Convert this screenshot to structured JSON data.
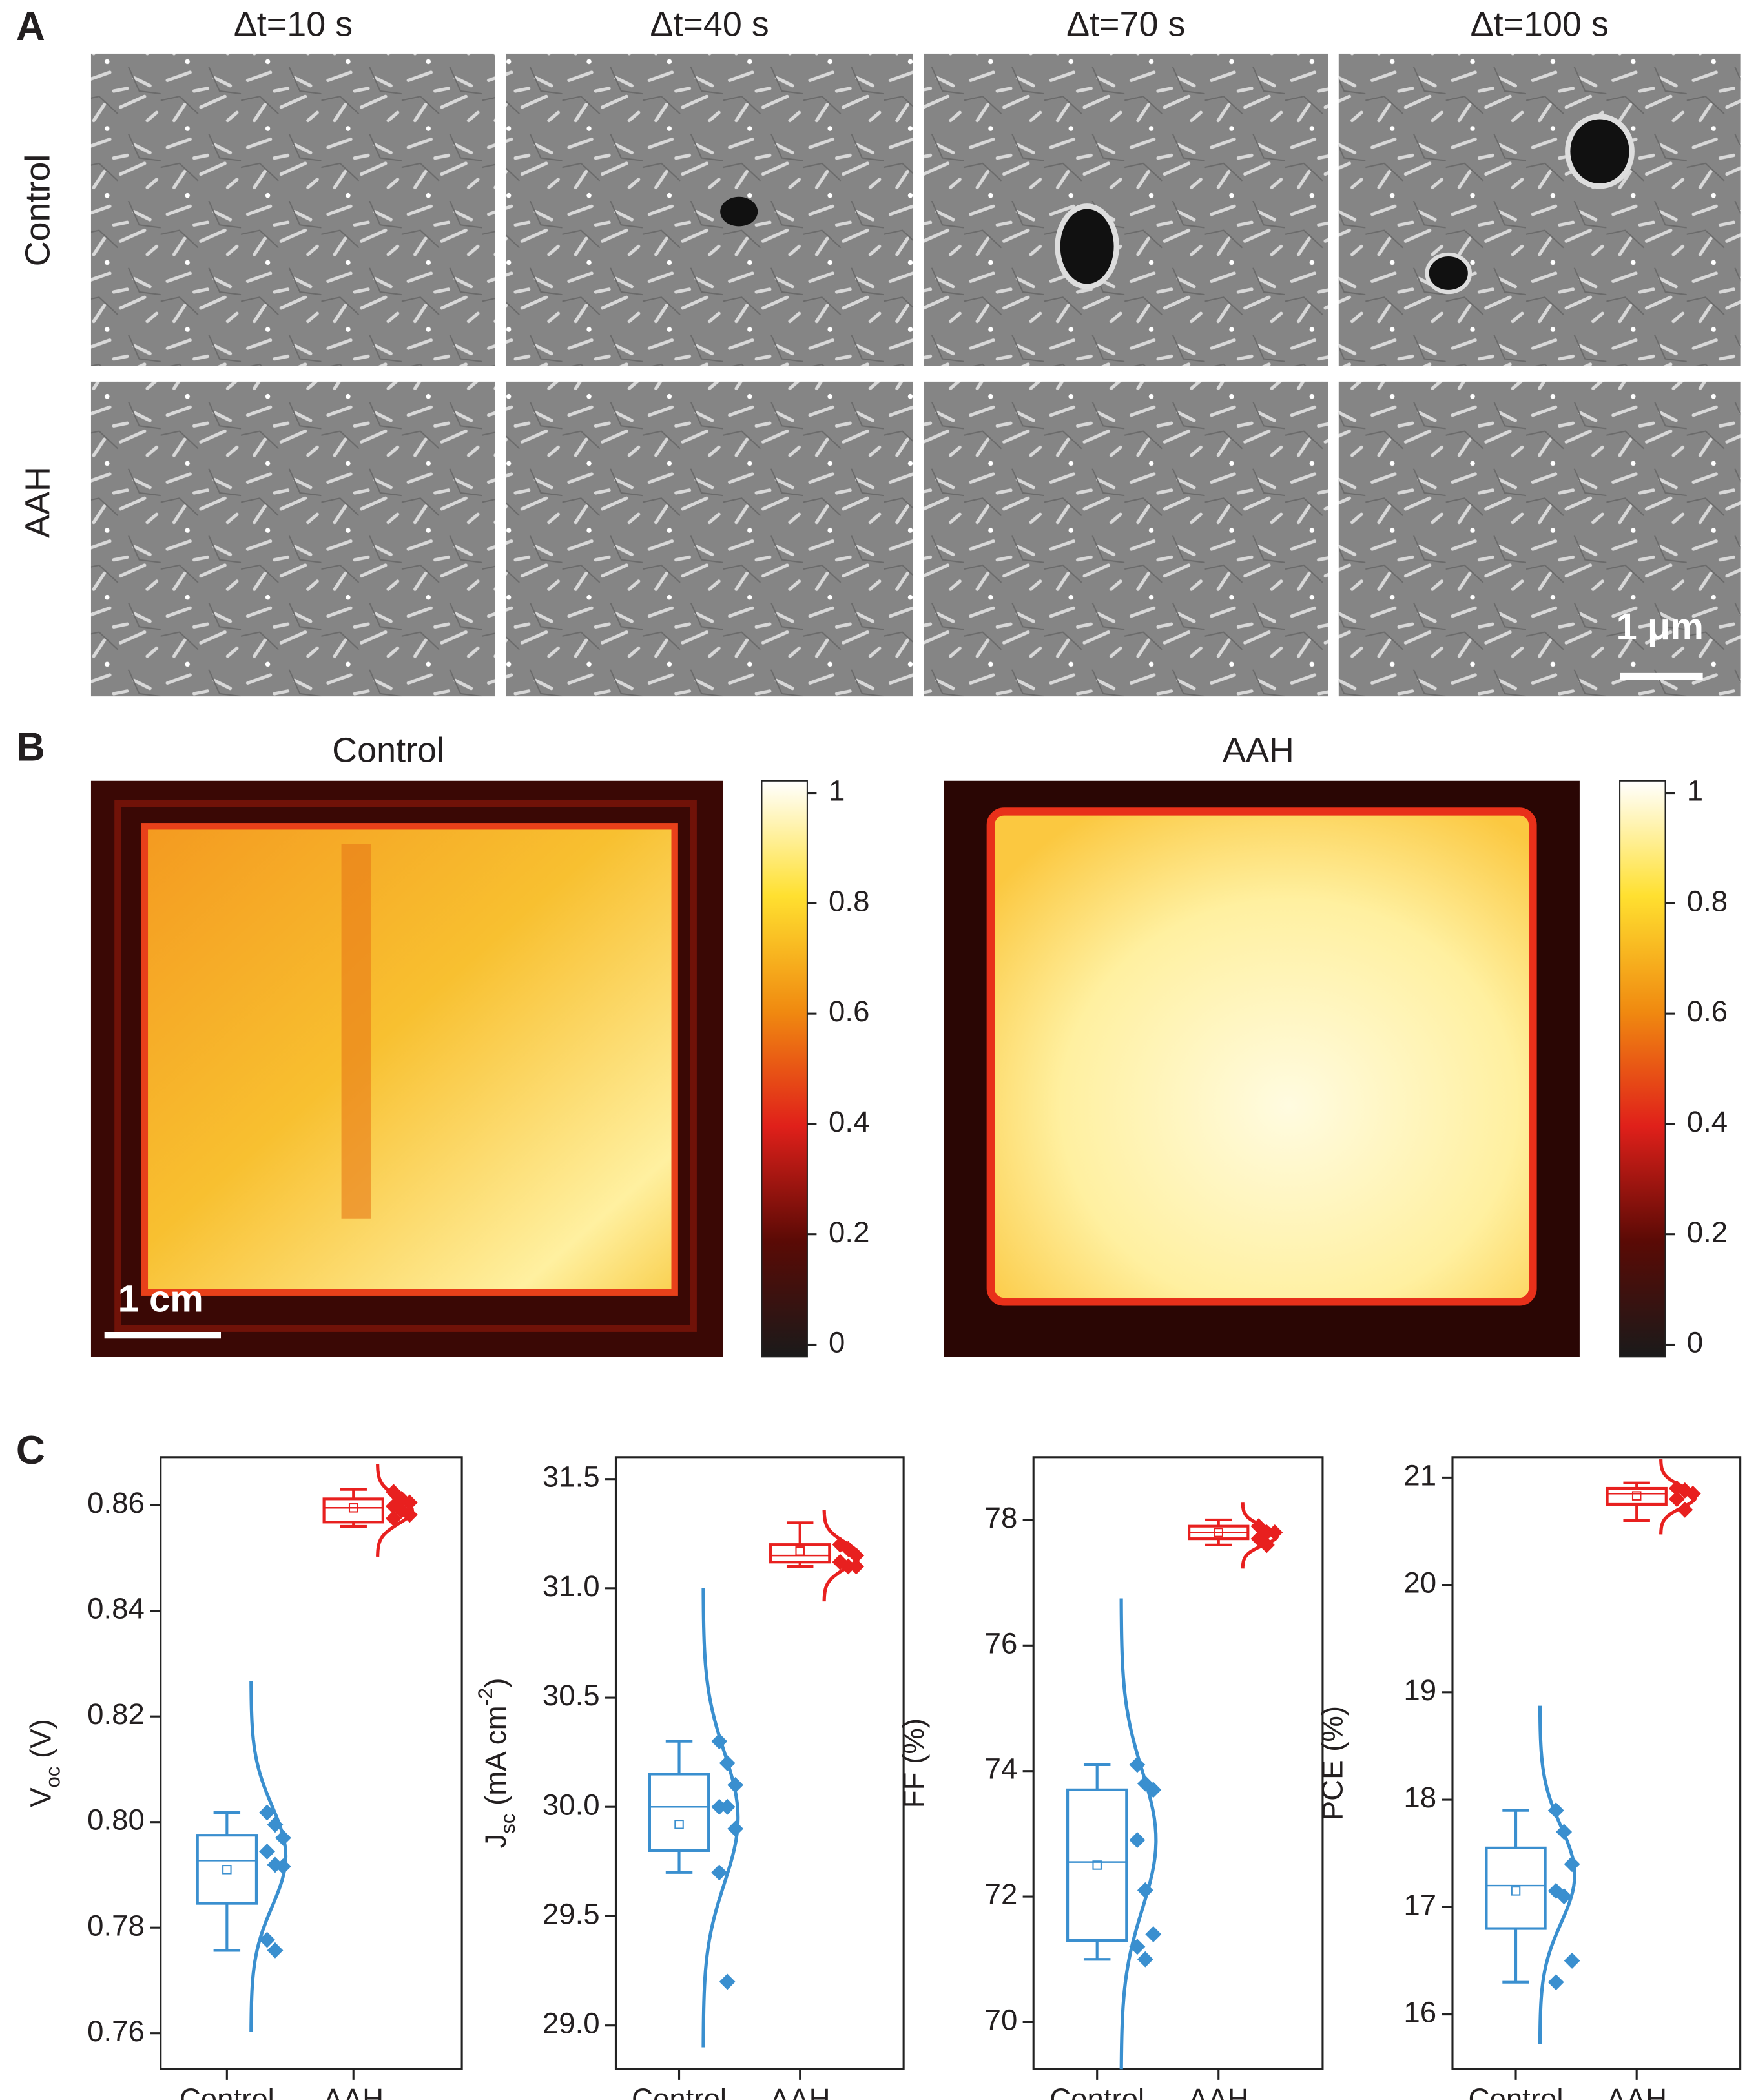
{
  "panel_labels": [
    "A",
    "B",
    "C"
  ],
  "panel_a": {
    "time_labels": [
      "Δt=10 s",
      "Δt=40 s",
      "Δt=70 s",
      "Δt=100 s"
    ],
    "row_labels": [
      "Control",
      "AAH"
    ],
    "scale_bar": "1 μm"
  },
  "panel_b": {
    "titles": [
      "Control",
      "AAH"
    ],
    "scale_bar": "1 cm",
    "colorbar": {
      "lim": [
        -0.022,
        1.022
      ],
      "ticks": [
        0,
        0.2,
        0.4,
        0.6,
        0.8,
        1
      ],
      "colormap": [
        "#1a1a1a",
        "#5a0a05",
        "#e0201a",
        "#f08a10",
        "#ffe030",
        "#ffffff"
      ]
    }
  },
  "chart_data": [
    {
      "type": "box",
      "ylabel": [
        {
          "text": "V"
        },
        {
          "text": "oc",
          "style": "sub"
        },
        {
          "text": " (V)"
        }
      ],
      "ylim": [
        0.7532,
        0.8691
      ],
      "yticks": [
        0.76,
        0.78,
        {
          "value": 0.8,
          "label": "0.80"
        },
        0.82,
        0.84,
        0.86
      ],
      "groups": [
        {
          "name": "Control",
          "color": "#3a8fcf",
          "whisker_low": 0.7757,
          "q1": 0.7846,
          "median": 0.7927,
          "q3": 0.7975,
          "whisker_high": 0.8018,
          "mean": 0.791,
          "points": [
            0.8018,
            0.7995,
            0.797,
            0.7944,
            0.7919,
            0.7916,
            0.7777,
            0.7757
          ],
          "dist": {
            "mean": 0.7935,
            "sd": 0.0095
          }
        },
        {
          "name": "AAH",
          "color": "#e8201f",
          "whisker_low": 0.856,
          "q1": 0.8568,
          "median": 0.8595,
          "q3": 0.8612,
          "whisker_high": 0.863,
          "mean": 0.8595,
          "points": [
            0.8625,
            0.8612,
            0.8605,
            0.8598,
            0.859,
            0.8582,
            0.8575
          ],
          "dist": {
            "mean": 0.859,
            "sd": 0.0025
          }
        }
      ]
    },
    {
      "type": "box",
      "ylabel": [
        {
          "text": "J"
        },
        {
          "text": "sc",
          "style": "sub"
        },
        {
          "text": " (mA cm"
        },
        {
          "text": "-2",
          "style": "sup"
        },
        {
          "text": ")"
        }
      ],
      "ylim": [
        28.8,
        31.6
      ],
      "yticks": [
        {
          "value": 29,
          "label": "29.0"
        },
        29.5,
        {
          "value": 30,
          "label": "30.0"
        },
        30.5,
        {
          "value": 31,
          "label": "31.0"
        },
        31.5
      ],
      "groups": [
        {
          "name": "Control",
          "color": "#3a8fcf",
          "whisker_low": 29.7,
          "q1": 29.8,
          "median": 30.0,
          "q3": 30.15,
          "whisker_high": 30.3,
          "mean": 29.92,
          "points": [
            30.3,
            30.2,
            30.1,
            30.0,
            30.0,
            29.9,
            29.7,
            29.2
          ],
          "dist": {
            "mean": 29.95,
            "sd": 0.3
          }
        },
        {
          "name": "AAH",
          "color": "#e8201f",
          "whisker_low": 31.1,
          "q1": 31.12,
          "median": 31.15,
          "q3": 31.2,
          "whisker_high": 31.3,
          "mean": 31.17,
          "points": [
            31.2,
            31.18,
            31.15,
            31.12,
            31.1,
            31.1
          ],
          "dist": {
            "mean": 31.15,
            "sd": 0.06
          }
        }
      ]
    },
    {
      "type": "box",
      "ylabel": [
        {
          "text": "FF (%)"
        }
      ],
      "ylim": [
        69.25,
        79.0
      ],
      "yticks": [
        70,
        72,
        74,
        76,
        78
      ],
      "groups": [
        {
          "name": "Control",
          "color": "#3a8fcf",
          "whisker_low": 71.0,
          "q1": 71.3,
          "median": 72.55,
          "q3": 73.7,
          "whisker_high": 74.1,
          "mean": 72.5,
          "points": [
            74.1,
            73.8,
            73.7,
            72.9,
            72.1,
            71.4,
            71.2,
            71.0
          ],
          "dist": {
            "mean": 72.9,
            "sd": 1.1
          }
        },
        {
          "name": "AAH",
          "color": "#e8201f",
          "whisker_low": 77.6,
          "q1": 77.7,
          "median": 77.8,
          "q3": 77.9,
          "whisker_high": 78.0,
          "mean": 77.8,
          "points": [
            77.9,
            77.8,
            77.8,
            77.7,
            77.6
          ],
          "dist": {
            "mean": 77.75,
            "sd": 0.15
          }
        }
      ]
    },
    {
      "type": "box",
      "ylabel": [
        {
          "text": "PCE (%)"
        }
      ],
      "ylim": [
        15.49,
        21.19
      ],
      "yticks": [
        16,
        17,
        18,
        19,
        20,
        21
      ],
      "groups": [
        {
          "name": "Control",
          "color": "#3a8fcf",
          "whisker_low": 16.3,
          "q1": 16.8,
          "median": 17.2,
          "q3": 17.55,
          "whisker_high": 17.9,
          "mean": 17.15,
          "points": [
            17.9,
            17.7,
            17.4,
            17.15,
            17.1,
            16.5,
            16.3
          ],
          "dist": {
            "mean": 17.3,
            "sd": 0.45
          }
        },
        {
          "name": "AAH",
          "color": "#e8201f",
          "whisker_low": 20.6,
          "q1": 20.75,
          "median": 20.85,
          "q3": 20.9,
          "whisker_high": 20.95,
          "mean": 20.83,
          "points": [
            20.9,
            20.88,
            20.85,
            20.8,
            20.7
          ],
          "dist": {
            "mean": 20.82,
            "sd": 0.1
          }
        }
      ]
    }
  ]
}
